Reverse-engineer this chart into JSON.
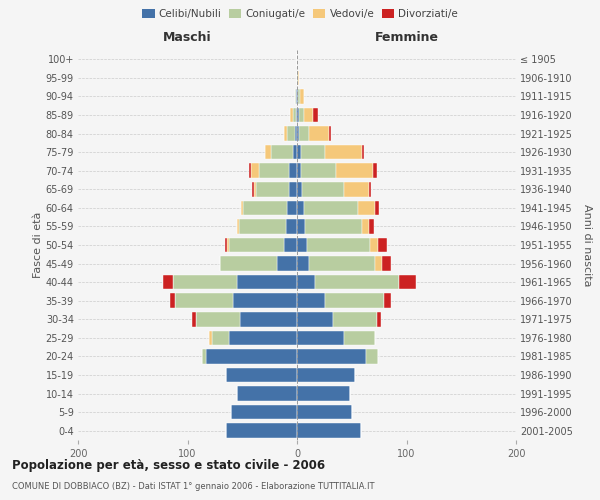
{
  "age_groups": [
    "0-4",
    "5-9",
    "10-14",
    "15-19",
    "20-24",
    "25-29",
    "30-34",
    "35-39",
    "40-44",
    "45-49",
    "50-54",
    "55-59",
    "60-64",
    "65-69",
    "70-74",
    "75-79",
    "80-84",
    "85-89",
    "90-94",
    "95-99",
    "100+"
  ],
  "birth_years": [
    "2001-2005",
    "1996-2000",
    "1991-1995",
    "1986-1990",
    "1981-1985",
    "1976-1980",
    "1971-1975",
    "1966-1970",
    "1961-1965",
    "1956-1960",
    "1951-1955",
    "1946-1950",
    "1941-1945",
    "1936-1940",
    "1931-1935",
    "1926-1930",
    "1921-1925",
    "1916-1920",
    "1911-1915",
    "1906-1910",
    "≤ 1905"
  ],
  "maschi_celibi": [
    65,
    60,
    55,
    65,
    83,
    62,
    52,
    58,
    55,
    18,
    12,
    10,
    9,
    7,
    7,
    4,
    2,
    1,
    1,
    0,
    0
  ],
  "maschi_coniugati": [
    0,
    0,
    0,
    0,
    4,
    16,
    40,
    53,
    58,
    52,
    50,
    43,
    40,
    30,
    28,
    20,
    7,
    3,
    1,
    0,
    0
  ],
  "maschi_vedovi": [
    0,
    0,
    0,
    0,
    0,
    2,
    0,
    0,
    0,
    0,
    2,
    2,
    2,
    2,
    7,
    5,
    3,
    2,
    0,
    0,
    0
  ],
  "maschi_divorziati": [
    0,
    0,
    0,
    0,
    0,
    0,
    4,
    5,
    9,
    0,
    2,
    0,
    0,
    2,
    2,
    0,
    0,
    0,
    0,
    0,
    0
  ],
  "femmine_nubili": [
    58,
    50,
    48,
    53,
    63,
    43,
    33,
    26,
    16,
    11,
    9,
    7,
    6,
    5,
    4,
    4,
    2,
    2,
    1,
    0,
    0
  ],
  "femmine_coniugate": [
    0,
    0,
    0,
    0,
    11,
    28,
    40,
    53,
    77,
    60,
    58,
    52,
    50,
    38,
    32,
    22,
    9,
    4,
    2,
    1,
    0
  ],
  "femmine_vedove": [
    0,
    0,
    0,
    0,
    0,
    0,
    0,
    0,
    0,
    7,
    7,
    7,
    15,
    23,
    33,
    33,
    18,
    9,
    3,
    1,
    0
  ],
  "femmine_divorziate": [
    0,
    0,
    0,
    0,
    0,
    0,
    4,
    7,
    16,
    8,
    8,
    4,
    4,
    2,
    4,
    2,
    2,
    4,
    0,
    0,
    0
  ],
  "colors": {
    "celibi": "#4472a8",
    "coniugati": "#b8cda0",
    "vedovi": "#f5c87a",
    "divorziati": "#cc2222"
  },
  "title": "Popolazione per età, sesso e stato civile - 2006",
  "subtitle": "COMUNE DI DOBBIACO (BZ) - Dati ISTAT 1° gennaio 2006 - Elaborazione TUTTITALIA.IT",
  "xlabel_left": "Maschi",
  "xlabel_right": "Femmine",
  "ylabel_left": "Fasce di età",
  "ylabel_right": "Anni di nascita",
  "xlim": 200,
  "background_color": "#f5f5f5",
  "grid_color": "#cccccc"
}
